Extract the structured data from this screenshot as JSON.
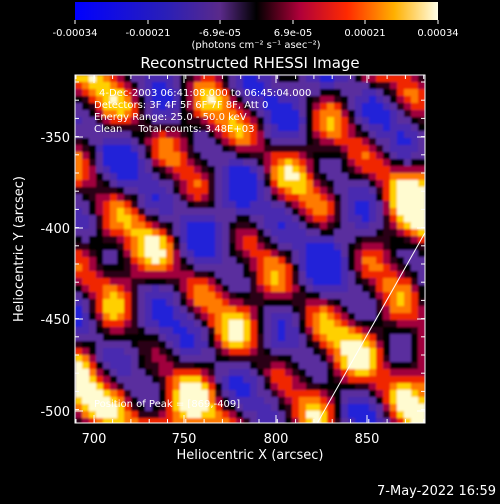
{
  "colorbar": {
    "ticks": [
      "-0.00034",
      "-0.00021",
      "-6.9e-05",
      "6.9e-05",
      "0.00021",
      "0.00034"
    ],
    "units": "(photons cm⁻² s⁻¹ asec⁻²)"
  },
  "plot": {
    "title": "Reconstructed RHESSI Image",
    "xlabel": "Heliocentric X (arcsec)",
    "ylabel": "Heliocentric Y (arcsec)",
    "xticks": [
      "700",
      "750",
      "800",
      "850"
    ],
    "yticks": [
      "-350",
      "-400",
      "-450",
      "-500"
    ]
  },
  "info": {
    "time_range": "4-Dec-2003 06:41:08.000 to 06:45:04.000",
    "detectors": "Detectors: 3F 4F 5F 6F 7F 8F, Att 0",
    "energy": "Energy Range: 25.0 - 50.0 keV",
    "method_counts": "Clean     Total counts: 3.48E+03",
    "peak": "Position of Peak = [869,-409]"
  },
  "footer": {
    "timestamp": "7-May-2022 16:59"
  },
  "chart_data": {
    "type": "heatmap",
    "title": "Reconstructed RHESSI Image",
    "xlabel": "Heliocentric X (arcsec)",
    "ylabel": "Heliocentric Y (arcsec)",
    "xlim": [
      688,
      883
    ],
    "ylim": [
      -512,
      -320
    ],
    "colorbar_range": [
      -0.00034,
      0.00034
    ],
    "limb_line": [
      [
        823,
        -512
      ],
      [
        883,
        -407
      ]
    ]
  }
}
